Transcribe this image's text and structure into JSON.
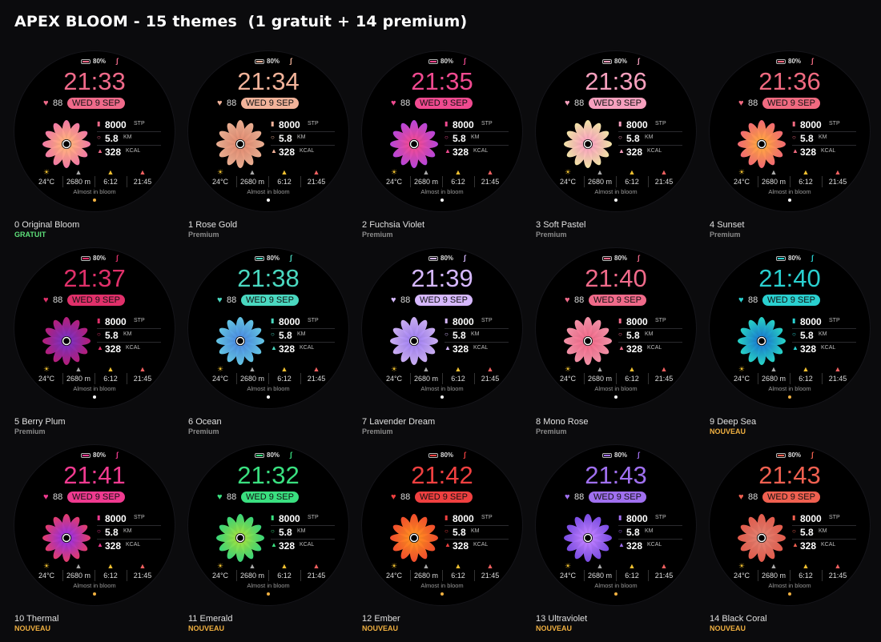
{
  "page": {
    "title": "APEX BLOOM - 15 themes  (1 gratuit + 14 premium)"
  },
  "common": {
    "battery": "80%",
    "heart_rate": "88",
    "date": "WED 9 SEP",
    "steps": "8000",
    "steps_unit": "STP",
    "distance": "5.8",
    "distance_unit": "KM",
    "calories": "328",
    "calories_unit": "KCAL",
    "temperature": "24°C",
    "altitude": "2680 m",
    "sunrise": "6:12",
    "sunset": "21:45",
    "message": "Almost in bloom",
    "icons": {
      "battery": "battery-icon",
      "bluetooth": "bluetooth-icon",
      "heart": "heart-icon",
      "steps": "steps-icon",
      "distance": "location-pin-icon",
      "calories": "flame-icon",
      "weather": "sun-icon",
      "altitude": "mountain-icon",
      "sunrise": "sunrise-icon",
      "sunset": "sunset-icon"
    }
  },
  "themes": [
    {
      "index": "0",
      "name": "Original Bloom",
      "tier": "GRATUIT",
      "time": "21:33",
      "accent": "#f06a8a",
      "petal_a": "#ff7fb0",
      "petal_b": "#ffb37a",
      "tier_color": "#5ee07a"
    },
    {
      "index": "1",
      "name": "Rose Gold",
      "tier": "Premium",
      "time": "21:34",
      "accent": "#f2b39a",
      "petal_a": "#f6b89a",
      "petal_b": "#e08a70",
      "tier_color": "#8a8a8a"
    },
    {
      "index": "2",
      "name": "Fuchsia Violet",
      "tier": "Premium",
      "time": "21:35",
      "accent": "#f04a90",
      "petal_a": "#c04ae8",
      "petal_b": "#f04a90",
      "tier_color": "#8a8a8a"
    },
    {
      "index": "3",
      "name": "Soft Pastel",
      "tier": "Premium",
      "time": "21:36",
      "accent": "#f7a0be",
      "petal_a": "#fff0b0",
      "petal_b": "#f7a0be",
      "tier_color": "#8a8a8a"
    },
    {
      "index": "4",
      "name": "Sunset",
      "tier": "Premium",
      "time": "21:36",
      "accent": "#f06a80",
      "petal_a": "#ff6f7a",
      "petal_b": "#ffa640",
      "tier_color": "#8a8a8a"
    },
    {
      "index": "5",
      "name": "Berry Plum",
      "tier": "Premium",
      "time": "21:37",
      "accent": "#e0306a",
      "petal_a": "#c02080",
      "petal_b": "#7a30c0",
      "tier_color": "#8a8a8a"
    },
    {
      "index": "6",
      "name": "Ocean",
      "tier": "Premium",
      "time": "21:38",
      "accent": "#4ad8c0",
      "petal_a": "#6ad0f0",
      "petal_b": "#4a8ae0",
      "tier_color": "#8a8a8a"
    },
    {
      "index": "7",
      "name": "Lavender Dream",
      "tier": "Premium",
      "time": "21:39",
      "accent": "#d6b8ff",
      "petal_a": "#d6b8ff",
      "petal_b": "#a080f0",
      "tier_color": "#8a8a8a"
    },
    {
      "index": "8",
      "name": "Mono Rose",
      "tier": "Premium",
      "time": "21:40",
      "accent": "#f06a8a",
      "petal_a": "#ff9ab0",
      "petal_b": "#f06a8a",
      "tier_color": "#8a8a8a"
    },
    {
      "index": "9",
      "name": "Deep Sea",
      "tier": "NOUVEAU",
      "time": "21:40",
      "accent": "#2ad0d0",
      "petal_a": "#2ae0d0",
      "petal_b": "#1a7ad0",
      "tier_color": "#f0b040"
    },
    {
      "index": "10",
      "name": "Thermal",
      "tier": "NOUVEAU",
      "time": "21:41",
      "accent": "#f03a90",
      "petal_a": "#f04070",
      "petal_b": "#9a30e0",
      "tier_color": "#f0b040"
    },
    {
      "index": "11",
      "name": "Emerald",
      "tier": "NOUVEAU",
      "time": "21:32",
      "accent": "#3ae080",
      "petal_a": "#3ae080",
      "petal_b": "#a0e040",
      "tier_color": "#f0b040"
    },
    {
      "index": "12",
      "name": "Ember",
      "tier": "NOUVEAU",
      "time": "21:42",
      "accent": "#f04040",
      "petal_a": "#ff5030",
      "petal_b": "#ff9020",
      "tier_color": "#f0b040"
    },
    {
      "index": "13",
      "name": "Ultraviolet",
      "tier": "NOUVEAU",
      "time": "21:43",
      "accent": "#a070f0",
      "petal_a": "#8050f0",
      "petal_b": "#c080ff",
      "tier_color": "#f0b040"
    },
    {
      "index": "14",
      "name": "Black Coral",
      "tier": "NOUVEAU",
      "time": "21:43",
      "accent": "#f06050",
      "petal_a": "#f06050",
      "petal_b": "#e08070",
      "tier_color": "#f0b040"
    }
  ]
}
